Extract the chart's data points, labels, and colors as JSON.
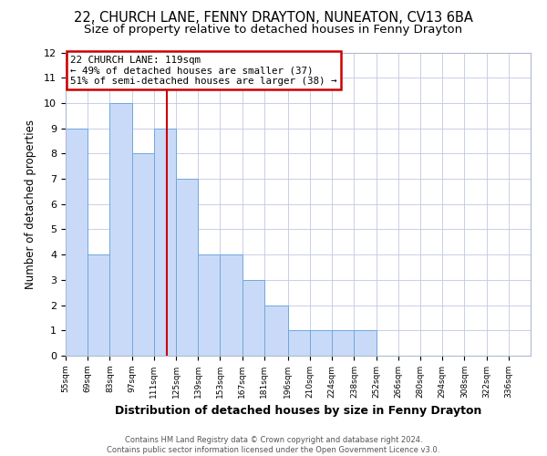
{
  "title": "22, CHURCH LANE, FENNY DRAYTON, NUNEATON, CV13 6BA",
  "subtitle": "Size of property relative to detached houses in Fenny Drayton",
  "xlabel": "Distribution of detached houses by size in Fenny Drayton",
  "ylabel": "Number of detached properties",
  "bin_labels": [
    "55sqm",
    "69sqm",
    "83sqm",
    "97sqm",
    "111sqm",
    "125sqm",
    "139sqm",
    "153sqm",
    "167sqm",
    "181sqm",
    "196sqm",
    "210sqm",
    "224sqm",
    "238sqm",
    "252sqm",
    "266sqm",
    "280sqm",
    "294sqm",
    "308sqm",
    "322sqm",
    "336sqm"
  ],
  "bin_edges": [
    55,
    69,
    83,
    97,
    111,
    125,
    139,
    153,
    167,
    181,
    196,
    210,
    224,
    238,
    252,
    266,
    280,
    294,
    308,
    322,
    336,
    350
  ],
  "counts": [
    9,
    4,
    10,
    8,
    9,
    7,
    4,
    4,
    3,
    2,
    1,
    1,
    1,
    1,
    0,
    0,
    0,
    0,
    0,
    0,
    0
  ],
  "bar_color": "#c9daf8",
  "bar_edge_color": "#6fa8dc",
  "vline_x": 119,
  "vline_color": "#cc0000",
  "annotation_box_color": "#cc0000",
  "annotation_lines": [
    "22 CHURCH LANE: 119sqm",
    "← 49% of detached houses are smaller (37)",
    "51% of semi-detached houses are larger (38) →"
  ],
  "ylim": [
    0,
    12
  ],
  "yticks": [
    0,
    1,
    2,
    3,
    4,
    5,
    6,
    7,
    8,
    9,
    10,
    11,
    12
  ],
  "footer1": "Contains HM Land Registry data © Crown copyright and database right 2024.",
  "footer2": "Contains public sector information licensed under the Open Government Licence v3.0.",
  "background_color": "#ffffff",
  "grid_color": "#c0c8e0",
  "title_fontsize": 10.5,
  "subtitle_fontsize": 9.5
}
